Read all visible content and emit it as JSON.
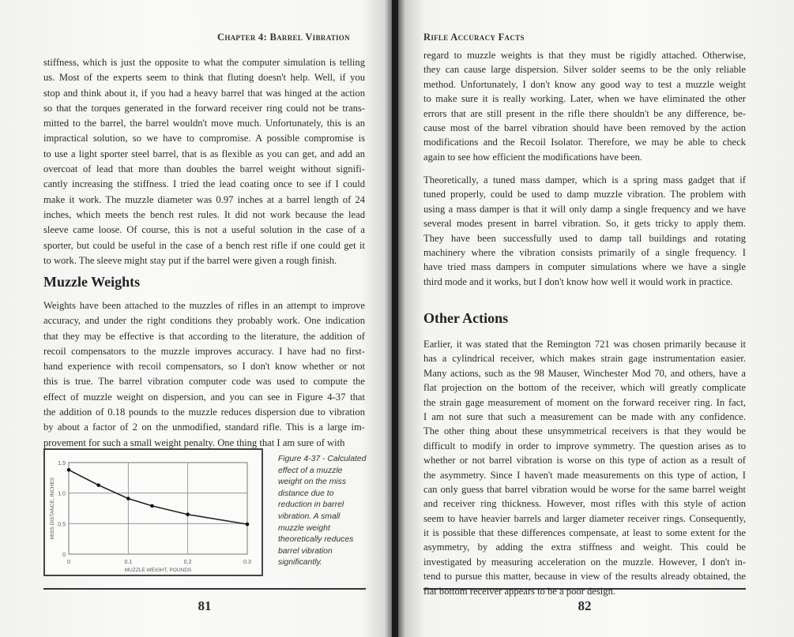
{
  "left_page": {
    "running_head": "Chapter 4: Barrel Vibration",
    "paragraph1": [
      "stiffness, which is just the opposite to what the computer simulation is telling",
      "us.  Most of the experts seem to think that fluting doesn't help.  Well, if you",
      "stop and think about it, if you had a heavy barrel that was hinged at the action",
      "so that the torques generated in the forward receiver ring could not be trans-",
      "mitted to the barrel, the barrel wouldn't move much. Unfortunately, this is an",
      "impractical solution, so we have to compromise.  A possible compromise is",
      "to use a light sporter steel barrel, that is as flexible as you can get, and add an",
      "overcoat of lead that more than doubles the barrel weight without signifi-",
      "cantly increasing the stiffness.  I tried the lead coating once to see if I could",
      "make it work.  The muzzle diameter was 0.97 inches at a barrel length of 24",
      "inches, which meets the bench rest rules.  It did not work because the lead",
      "sleeve came loose.  Of course, this is not a useful solution in the case of a",
      "sporter, but could be useful in the case of a bench rest rifle if one could get it",
      "to work.  The sleeve might stay put if the barrel were given a rough finish."
    ],
    "heading": "Muzzle Weights",
    "paragraph2": [
      "Weights have been attached to the muzzles of rifles in an attempt to improve",
      "accuracy, and under the right conditions they probably work.  One indication",
      "that they may be effective is that according to the literature, the addition of",
      "recoil compensators to the muzzle improves accuracy.  I have had no first-",
      "hand experience with recoil compensators, so I don't know whether or not",
      "this is true.  The barrel vibration computer code was used to compute the",
      "effect of muzzle weight on dispersion, and you can see in Figure 4-37 that",
      "the addition of 0.18 pounds to the muzzle reduces dispersion due to vibration",
      "by about a factor of 2 on the unmodified, standard rifle.  This is a large im-",
      "provement for such a small weight penalty.  One thing that I am sure of with"
    ],
    "figure_caption": "Figure 4-37 - Calculated effect of a muzzle weight on the miss distance due to reduction in barrel vibration. A small muzzle weight theoretically reduces barrel vibration significantly.",
    "page_number": "81"
  },
  "chart_data": {
    "type": "line",
    "xlabel": "MUZZLE WEIGHT, POUNDS",
    "ylabel": "MISS DISTANCE, INCHES",
    "xlim": [
      0,
      0.3
    ],
    "ylim": [
      0,
      1.5
    ],
    "x_ticks": [
      "0",
      "0.1",
      "0.2",
      "0.3"
    ],
    "y_ticks": [
      "0",
      "0.5",
      "1.0",
      "1.5"
    ],
    "grid": true,
    "x": [
      0,
      0.05,
      0.1,
      0.14,
      0.2,
      0.3
    ],
    "y": [
      1.38,
      1.13,
      0.91,
      0.79,
      0.65,
      0.49
    ]
  },
  "right_page": {
    "running_head": "Rifle Accuracy Facts",
    "paragraph1": [
      "regard to muzzle weights is that they must be rigidly attached. Otherwise,",
      "they can cause large dispersion.  Silver solder seems to be the only reliable",
      "method.  Unfortunately, I don't know any good way to test a muzzle weight",
      "to make sure it is really working.  Later, when we have eliminated the other",
      "errors that are still present in the rifle there shouldn't be any difference, be-",
      "cause most of the barrel vibration should have been removed by the action",
      "modifications and the Recoil Isolator.  Therefore, we may be able to check",
      "again to see how efficient the modifications have been."
    ],
    "paragraph2": [
      "Theoretically, a tuned mass damper, which is a spring mass gadget that if",
      "tuned properly, could be used to damp muzzle vibration.  The problem with",
      "using a mass damper is that it will only damp a single frequency and we have",
      "several modes present in barrel vibration.  So, it gets tricky to apply them.",
      "They have been successfully used to damp tall buildings and rotating",
      "machinery where the vibration consists primarily of a single frequency.  I",
      "have tried mass dampers in computer simulations where we have a single",
      "third mode and it works, but I don't know how well it would work in practice."
    ],
    "heading": "Other Actions",
    "paragraph3": [
      "Earlier, it was stated that the Remington 721 was chosen primarily because it",
      "has a cylindrical receiver, which makes strain gage instrumentation easier.",
      "Many actions, such as the 98 Mauser, Winchester Mod 70, and others, have a",
      "flat projection on the bottom of the receiver, which will greatly complicate",
      "the strain gage measurement of moment on the forward receiver ring. In fact,",
      "I am not sure that such a measurement can be made with any confidence.",
      "The other thing about these unsymmetrical receivers is that they would be",
      "difficult to modify in order to improve symmetry.  The question arises as to",
      "whether or not barrel vibration is worse on this type of action as a result of",
      "the asymmetry.  Since I haven't made measurements on this type of action, I",
      "can only guess that barrel vibration would be worse for the same barrel weight",
      "and receiver ring thickness.  However, most rifles with this style of action",
      "seem to have heavier barrels and larger diameter receiver rings.  Consequently,",
      "it is possible that these differences compensate, at least to some extent for the",
      "asymmetry, by adding the extra stiffness and weight.  This could be",
      "investigated by measuring acceleration on the muzzle.  However, I don't in-",
      "tend to pursue this matter, because in view of the results already obtained, the",
      "flat bottom receiver appears to be a poor design."
    ],
    "page_number": "82"
  }
}
